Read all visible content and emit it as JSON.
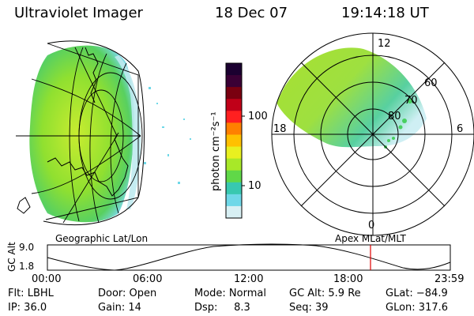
{
  "header": {
    "instrument": "Ultraviolet Imager",
    "date": "18 Dec 07",
    "time": "19:14:18 UT"
  },
  "left_map": {
    "caption": "Geographic Lat/Lon"
  },
  "right_map": {
    "caption": "Apex MLat/MLT",
    "mlt_labels": {
      "top": "12",
      "left": "18",
      "right": "6",
      "bottom": "0"
    },
    "lat_labels": [
      "60",
      "70",
      "80"
    ]
  },
  "colorbar": {
    "unit_label": "photon cm⁻²s⁻¹",
    "ticks": [
      "100",
      "10"
    ],
    "colors": [
      "#1b0030",
      "#3a0035",
      "#7a0010",
      "#c00018",
      "#ff2020",
      "#ff8000",
      "#ffc000",
      "#e8f020",
      "#a8e828",
      "#60d848",
      "#38c8b0",
      "#6fd8e8",
      "#d8f0f4"
    ]
  },
  "altitude_plot": {
    "y_label": "GC Alt",
    "y_max": "9.0",
    "y_min": "1.8",
    "x_ticks": [
      "00:00",
      "06:00",
      "12:00",
      "18:00",
      "23:59"
    ],
    "marker_color": "#e00000"
  },
  "status": {
    "flt": "Flt: LBHL",
    "ip": "IP: 36.0",
    "door": "Door: Open",
    "gain": "Gain: 14",
    "mode": "Mode: Normal",
    "dsp": "Dsp:     8.3",
    "gcalt": "GC Alt: 5.9 Re",
    "seq": "Seq: 39",
    "glat": "GLat: −84.9",
    "glon": "GLon: 317.6"
  }
}
